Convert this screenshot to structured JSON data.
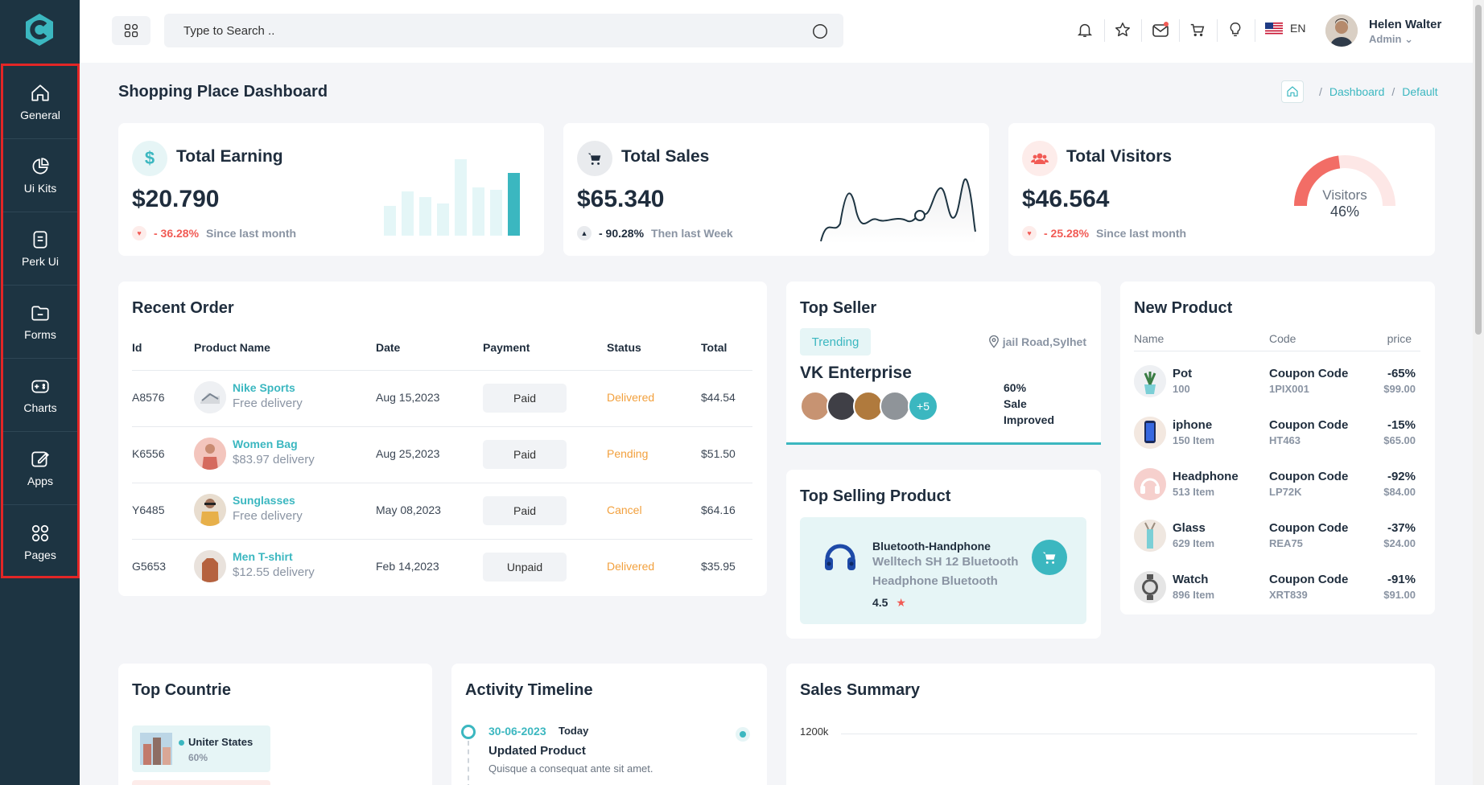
{
  "sidebar": {
    "items": [
      {
        "label": "General",
        "icon": "home-icon"
      },
      {
        "label": "Ui Kits",
        "icon": "pie-chart-icon"
      },
      {
        "label": "Perk Ui",
        "icon": "document-icon"
      },
      {
        "label": "Forms",
        "icon": "folder-icon"
      },
      {
        "label": "Charts",
        "icon": "gamepad-icon"
      },
      {
        "label": "Apps",
        "icon": "edit-icon"
      },
      {
        "label": "Pages",
        "icon": "grid-icon"
      }
    ]
  },
  "header": {
    "search_placeholder": "Type to Search ..",
    "language": "EN",
    "user_name": "Helen Walter",
    "user_role": "Admin"
  },
  "page": {
    "title": "Shopping Place Dashboard",
    "breadcrumb": [
      "Dashboard",
      "Default"
    ]
  },
  "stats": {
    "earning": {
      "title": "Total Earning",
      "value": "$20.790",
      "change": "- 36.28%",
      "period": "Since last month",
      "bars": [
        0.37,
        0.55,
        0.48,
        0.4,
        0.95,
        0.6,
        0.57,
        0.78
      ]
    },
    "sales": {
      "title": "Total Sales",
      "value": "$65.340",
      "change": "- 90.28%",
      "period": "Then last Week"
    },
    "visitors": {
      "title": "Total Visitors",
      "value": "$46.564",
      "change": "- 25.28%",
      "period": "Since last month",
      "gauge_label": "Visitors",
      "gauge_value": "46%",
      "gauge_fraction": 0.46
    }
  },
  "recent_order": {
    "title": "Recent Order",
    "columns": [
      "Id",
      "Product Name",
      "Date",
      "Payment",
      "Status",
      "Total"
    ],
    "rows": [
      {
        "id": "A8576",
        "name": "Nike Sports",
        "delivery": "Free delivery",
        "date": "Aug 15,2023",
        "payment": "Paid",
        "status": "Delivered",
        "total": "$44.54"
      },
      {
        "id": "K6556",
        "name": "Women Bag",
        "delivery": "$83.97 delivery",
        "date": "Aug 25,2023",
        "payment": "Paid",
        "status": "Pending",
        "total": "$51.50"
      },
      {
        "id": "Y6485",
        "name": "Sunglasses",
        "delivery": "Free delivery",
        "date": "May 08,2023",
        "payment": "Paid",
        "status": "Cancel",
        "total": "$64.16"
      },
      {
        "id": "G5653",
        "name": "Men T-shirt",
        "delivery": "$12.55 delivery",
        "date": "Feb 14,2023",
        "payment": "Unpaid",
        "status": "Delivered",
        "total": "$35.95"
      }
    ]
  },
  "top_seller": {
    "title": "Top Seller",
    "badge": "Trending",
    "location": "jail Road,Sylhet",
    "company": "VK Enterprise",
    "more": "+5",
    "improve_pct": "60%",
    "improve_l1": "Sale",
    "improve_l2": "Improved"
  },
  "top_selling": {
    "title": "Top Selling Product",
    "name": "Bluetooth-Handphone",
    "desc1": "Welltech SH 12 Bluetooth",
    "desc2": "Headphone Bluetooth",
    "rating": "4.5"
  },
  "new_product": {
    "title": "New Product",
    "columns": [
      "Name",
      "Code",
      "price"
    ],
    "rows": [
      {
        "name": "Pot",
        "sub": "100",
        "code": "Coupon Code",
        "code_sub": "1PIX001",
        "disc": "-65%",
        "price": "$99.00"
      },
      {
        "name": "iphone",
        "sub": "150 Item",
        "code": "Coupon Code",
        "code_sub": "HT463",
        "disc": "-15%",
        "price": "$65.00"
      },
      {
        "name": "Headphone",
        "sub": "513 Item",
        "code": "Coupon Code",
        "code_sub": "LP72K",
        "disc": "-92%",
        "price": "$84.00"
      },
      {
        "name": "Glass",
        "sub": "629 Item",
        "code": "Coupon Code",
        "code_sub": "REA75",
        "disc": "-37%",
        "price": "$24.00"
      },
      {
        "name": "Watch",
        "sub": "896 Item",
        "code": "Coupon Code",
        "code_sub": "XRT839",
        "disc": "-91%",
        "price": "$91.00"
      }
    ]
  },
  "top_countries": {
    "title": "Top Countrie",
    "first": "Uniter States",
    "first_pct": "60%"
  },
  "activity": {
    "title": "Activity Timeline",
    "date": "30-06-2023",
    "when": "Today",
    "event": "Updated Product",
    "desc": "Quisque a consequat ante sit amet."
  },
  "sales_summary": {
    "title": "Sales Summary",
    "y_top": "1200k"
  },
  "colors": {
    "accent": "#3bb7c0",
    "sidebar": "#1d3442",
    "danger": "#f15b55",
    "warning": "#f2a03d"
  }
}
